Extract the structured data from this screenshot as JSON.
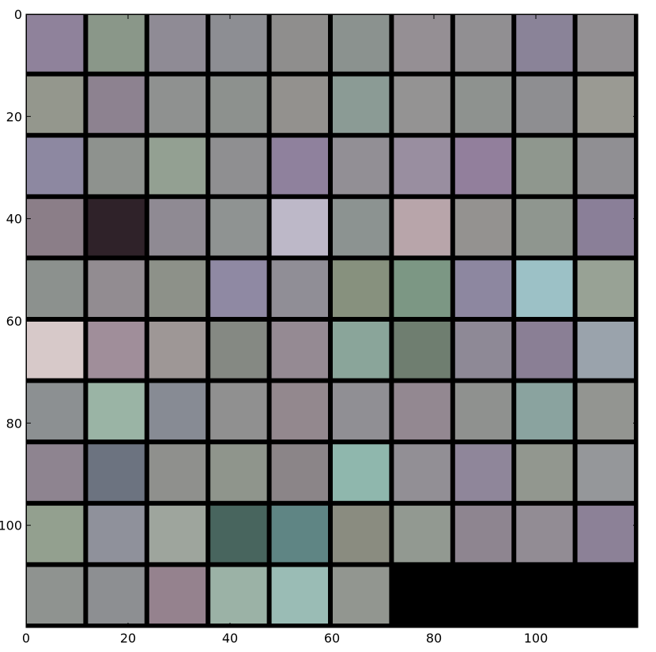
{
  "chart_data": {
    "type": "heatmap",
    "description_kind": "image grid",
    "grid": {
      "rows": 10,
      "cols": 10,
      "filled_cells": 96
    },
    "axes": {
      "x": {
        "ticks": [
          0,
          20,
          40,
          60,
          80,
          100
        ],
        "tick_labels": [
          "0",
          "20",
          "40",
          "60",
          "80",
          "100"
        ],
        "xlim": [
          0,
          120
        ]
      },
      "y": {
        "ticks": [
          0,
          20,
          40,
          60,
          80,
          100
        ],
        "tick_labels": [
          "0",
          "20",
          "40",
          "60",
          "80",
          "100"
        ],
        "ylim": [
          120,
          0
        ]
      }
    },
    "frame_color": "#000000",
    "background_color": "#000000",
    "tiles": [
      [
        "#8f829b",
        "#8a9789",
        "#8f8b95",
        "#8d8e93",
        "#8f8e8d",
        "#8b928f",
        "#958f94",
        "#918f92",
        "#8a8398",
        "#928f92"
      ],
      [
        "#94978d",
        "#8d8290",
        "#8f9190",
        "#8d918e",
        "#93918e",
        "#8b9b95",
        "#949393",
        "#8e928f",
        "#8e8e91",
        "#9a9a93"
      ],
      [
        "#8d88a1",
        "#8e928e",
        "#93a092",
        "#8f8f91",
        "#8f819d",
        "#928f95",
        "#998ea0",
        "#927f9c",
        "#8f978e",
        "#908f93"
      ],
      [
        "#8b7e88",
        "#2f2229",
        "#8f8a93",
        "#8f9392",
        "#bdb8c8",
        "#8c9391",
        "#b8a5aa",
        "#949290",
        "#8f968f",
        "#8a7f98"
      ],
      [
        "#8c918e",
        "#928c91",
        "#8d9189",
        "#8f89a3",
        "#908e96",
        "#87917e",
        "#7c9784",
        "#8d87a0",
        "#9cc1c6",
        "#98a295"
      ],
      [
        "#d7c9c9",
        "#a08e9a",
        "#9e9796",
        "#858983",
        "#958a93",
        "#8aa59a",
        "#6f7e70",
        "#8e8996",
        "#8a7f95",
        "#9aa3ac"
      ],
      [
        "#8c9092",
        "#9ab4a5",
        "#878b94",
        "#909090",
        "#93888e",
        "#908f94",
        "#938891",
        "#8f918f",
        "#8aa39f",
        "#939591"
      ],
      [
        "#8e8490",
        "#6c7380",
        "#8f908d",
        "#8f958c",
        "#8b8588",
        "#8fb7ad",
        "#928f95",
        "#8f869a",
        "#92978f",
        "#95979a"
      ],
      [
        "#93a08f",
        "#8f919b",
        "#9ea59d",
        "#48655e",
        "#5f8584",
        "#8a8c80",
        "#929991",
        "#8e8590",
        "#928c94",
        "#8c8197"
      ],
      [
        "#8f9390",
        "#8d8f92",
        "#95828e",
        "#9bb2a6",
        "#9abcb5",
        "#929690",
        null,
        null,
        null,
        null
      ]
    ]
  }
}
